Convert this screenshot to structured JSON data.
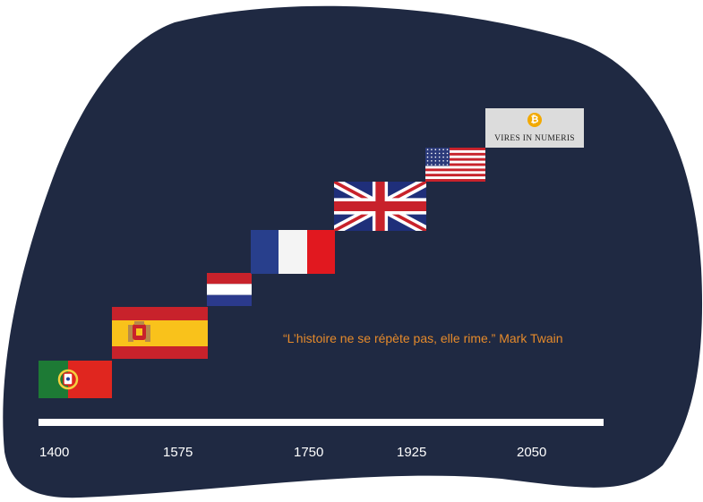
{
  "colors": {
    "blob": "#1f2942",
    "timeline": "#ffffff",
    "quote": "#e58a2b",
    "year_text": "#ffffff"
  },
  "timeline": {
    "years": [
      "1400",
      "1575",
      "1750",
      "1925",
      "2050"
    ]
  },
  "quote": {
    "text": "“L’histoire ne se répète pas, elle rime.” Mark Twain"
  },
  "flags": [
    {
      "name": "portugal-flag-icon"
    },
    {
      "name": "spain-flag-icon"
    },
    {
      "name": "netherlands-flag-icon"
    },
    {
      "name": "france-flag-icon"
    },
    {
      "name": "united-kingdom-flag-icon"
    },
    {
      "name": "united-states-flag-icon"
    }
  ],
  "bitcoin": {
    "icon": "bitcoin-icon",
    "symbol": "₿",
    "caption": "VIRES IN NUMERIS"
  }
}
